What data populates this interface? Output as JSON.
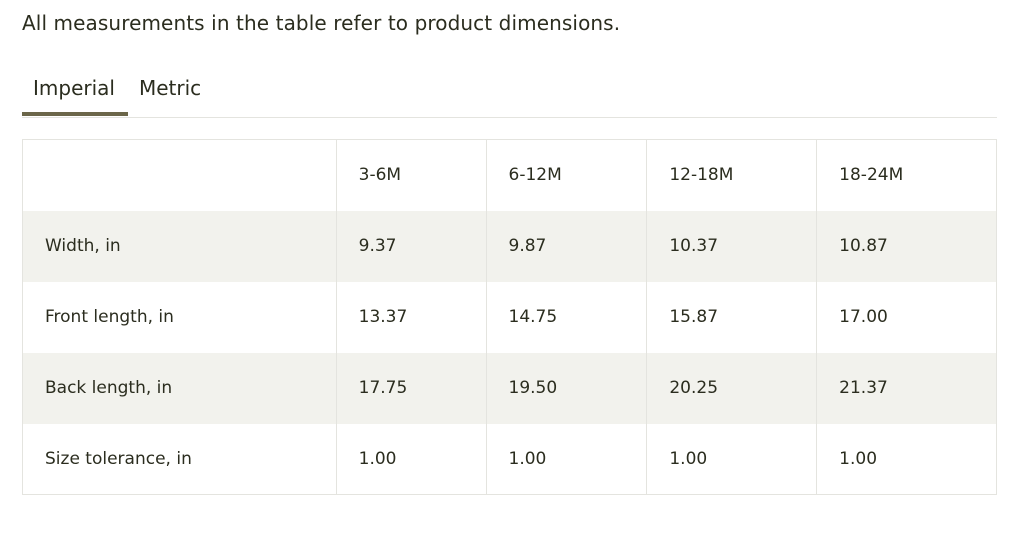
{
  "intro_text": "All measurements in the table refer to product dimensions.",
  "tabs": [
    {
      "label": "Imperial",
      "active": true
    },
    {
      "label": "Metric",
      "active": false
    }
  ],
  "table": {
    "columns": [
      "",
      "3-6M",
      "6-12M",
      "12-18M",
      "18-24M"
    ],
    "rows": [
      {
        "label": "Width, in",
        "values": [
          "9.37",
          "9.87",
          "10.37",
          "10.87"
        ]
      },
      {
        "label": "Front length, in",
        "values": [
          "13.37",
          "14.75",
          "15.87",
          "17.00"
        ]
      },
      {
        "label": "Back length, in",
        "values": [
          "17.75",
          "19.50",
          "20.25",
          "21.37"
        ]
      },
      {
        "label": "Size tolerance, in",
        "values": [
          "1.00",
          "1.00",
          "1.00",
          "1.00"
        ]
      }
    ]
  },
  "colors": {
    "text": "#2b2d1f",
    "active_tab_underline": "#6b6649",
    "stripe": "#f2f2ed",
    "border": "#e4e4df"
  }
}
